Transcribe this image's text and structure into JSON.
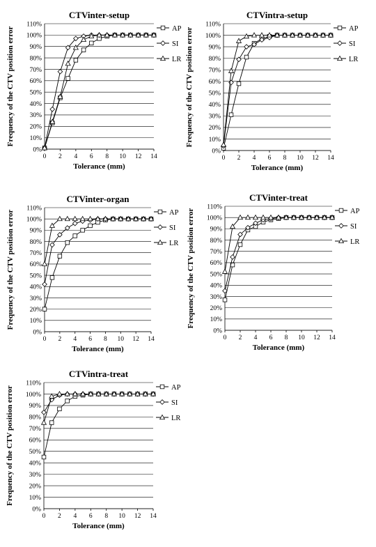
{
  "chart_data": [
    {
      "type": "line",
      "title": "CTVinter-setup",
      "xlabel": "Tolerance (mm)",
      "ylabel": "Frequency of the CTV position  error",
      "xlim": [
        0,
        14
      ],
      "ylim": [
        0,
        110
      ],
      "xticks": [
        "0",
        "2",
        "4",
        "6",
        "8",
        "10",
        "12",
        "14"
      ],
      "yticks": [
        "0%",
        "10%",
        "20%",
        "30%",
        "40%",
        "50%",
        "60%",
        "70%",
        "80%",
        "90%",
        "100%",
        "110%"
      ],
      "grid": "horizontal",
      "legend_position": "right",
      "x": [
        0,
        1,
        2,
        3,
        4,
        5,
        6,
        7,
        8,
        9,
        10,
        11,
        12,
        13,
        14
      ],
      "series": [
        {
          "name": "AP",
          "marker": "square",
          "values": [
            1,
            23,
            45,
            62,
            78,
            87,
            93,
            97,
            99,
            100,
            100,
            100,
            100,
            100,
            100
          ]
        },
        {
          "name": "SI",
          "marker": "diamond",
          "values": [
            1,
            35,
            68,
            89,
            97,
            99,
            100,
            100,
            100,
            100,
            100,
            100,
            100,
            100,
            100
          ]
        },
        {
          "name": "LR",
          "marker": "triangle",
          "values": [
            1,
            24,
            46,
            75,
            89,
            96,
            99,
            100,
            100,
            100,
            100,
            100,
            100,
            100,
            100
          ]
        }
      ]
    },
    {
      "type": "line",
      "title": "CTVintra-setup",
      "xlabel": "Tolerance (mm)",
      "ylabel": "Frequency of the CTV position  error",
      "xlim": [
        0,
        14
      ],
      "ylim": [
        0,
        110
      ],
      "xticks": [
        "0",
        "2",
        "4",
        "6",
        "8",
        "10",
        "12",
        "14"
      ],
      "yticks": [
        "0%",
        "10%",
        "20%",
        "30%",
        "40%",
        "50%",
        "60%",
        "70%",
        "80%",
        "90%",
        "100%",
        "110%"
      ],
      "grid": "horizontal",
      "legend_position": "right",
      "x": [
        0,
        1,
        2,
        3,
        4,
        5,
        6,
        7,
        8,
        9,
        10,
        11,
        12,
        13,
        14
      ],
      "series": [
        {
          "name": "AP",
          "marker": "square",
          "values": [
            2,
            31,
            58,
            81,
            93,
            97,
            99,
            100,
            100,
            100,
            100,
            100,
            100,
            100,
            100
          ]
        },
        {
          "name": "SI",
          "marker": "diamond",
          "values": [
            4,
            59,
            79,
            90,
            92,
            96,
            98,
            100,
            100,
            100,
            100,
            100,
            100,
            100,
            100
          ]
        },
        {
          "name": "LR",
          "marker": "triangle",
          "values": [
            5,
            69,
            95,
            99,
            100,
            100,
            100,
            100,
            100,
            100,
            100,
            100,
            100,
            100,
            100
          ]
        }
      ]
    },
    {
      "type": "line",
      "title": "CTVinter-organ",
      "xlabel": "Tolerance (mm)",
      "ylabel": "Frequency of the CTV position  error",
      "xlim": [
        0,
        14
      ],
      "ylim": [
        0,
        110
      ],
      "xticks": [
        "0",
        "2",
        "4",
        "6",
        "8",
        "10",
        "12",
        "14"
      ],
      "yticks": [
        "0%",
        "10%",
        "20%",
        "30%",
        "40%",
        "50%",
        "60%",
        "70%",
        "80%",
        "90%",
        "100%",
        "110%"
      ],
      "grid": "horizontal",
      "legend_position": "right",
      "x": [
        0,
        1,
        2,
        3,
        4,
        5,
        6,
        7,
        8,
        9,
        10,
        11,
        12,
        13,
        14
      ],
      "series": [
        {
          "name": "AP",
          "marker": "square",
          "values": [
            20,
            48,
            67,
            79,
            85,
            90,
            94,
            97,
            99,
            100,
            100,
            100,
            100,
            100,
            100
          ]
        },
        {
          "name": "SI",
          "marker": "diamond",
          "values": [
            42,
            77,
            86,
            92,
            96,
            98,
            99,
            100,
            100,
            100,
            100,
            100,
            100,
            100,
            100
          ]
        },
        {
          "name": "LR",
          "marker": "triangle",
          "values": [
            60,
            94,
            100,
            100,
            100,
            100,
            100,
            100,
            100,
            100,
            100,
            100,
            100,
            100,
            100
          ]
        }
      ]
    },
    {
      "type": "line",
      "title": "CTVinter-treat",
      "xlabel": "Tolerance (mm)",
      "ylabel": "Frequency of the CTV position  error",
      "xlim": [
        0,
        14
      ],
      "ylim": [
        0,
        110
      ],
      "xticks": [
        "0",
        "2",
        "4",
        "6",
        "8",
        "10",
        "12",
        "14"
      ],
      "yticks": [
        "0%",
        "10%",
        "20%",
        "30%",
        "40%",
        "50%",
        "60%",
        "70%",
        "80%",
        "90%",
        "100%",
        "110%"
      ],
      "grid": "horizontal",
      "legend_position": "right",
      "x": [
        0,
        1,
        2,
        3,
        4,
        5,
        6,
        7,
        8,
        9,
        10,
        11,
        12,
        13,
        14
      ],
      "series": [
        {
          "name": "AP",
          "marker": "square",
          "values": [
            27,
            58,
            76,
            89,
            92,
            96,
            98,
            99,
            100,
            100,
            100,
            100,
            100,
            100,
            100
          ]
        },
        {
          "name": "SI",
          "marker": "diamond",
          "values": [
            35,
            65,
            85,
            91,
            95,
            98,
            99,
            100,
            100,
            100,
            100,
            100,
            100,
            100,
            100
          ]
        },
        {
          "name": "LR",
          "marker": "triangle",
          "values": [
            52,
            92,
            100,
            100,
            100,
            100,
            100,
            100,
            100,
            100,
            100,
            100,
            100,
            100,
            100
          ]
        }
      ]
    },
    {
      "type": "line",
      "title": "CTVintra-treat",
      "xlabel": "Tolerance (mm)",
      "ylabel": "Frequency of the CTV position  error",
      "xlim": [
        0,
        14
      ],
      "ylim": [
        0,
        110
      ],
      "xticks": [
        "0",
        "2",
        "4",
        "6",
        "8",
        "10",
        "12",
        "14"
      ],
      "yticks": [
        "0%",
        "10%",
        "20%",
        "30%",
        "40%",
        "50%",
        "60%",
        "70%",
        "80%",
        "90%",
        "100%",
        "110%"
      ],
      "grid": "horizontal",
      "legend_position": "right",
      "x": [
        0,
        1,
        2,
        3,
        4,
        5,
        6,
        7,
        8,
        9,
        10,
        11,
        12,
        13,
        14
      ],
      "series": [
        {
          "name": "AP",
          "marker": "square",
          "values": [
            45,
            75,
            87,
            94,
            98,
            99,
            100,
            100,
            100,
            100,
            100,
            100,
            100,
            100,
            100
          ]
        },
        {
          "name": "SI",
          "marker": "diamond",
          "values": [
            84,
            95,
            99,
            100,
            100,
            100,
            100,
            100,
            100,
            100,
            100,
            100,
            100,
            100,
            100
          ]
        },
        {
          "name": "LR",
          "marker": "triangle",
          "values": [
            75,
            98,
            100,
            100,
            100,
            100,
            100,
            100,
            100,
            100,
            100,
            100,
            100,
            100,
            100
          ]
        }
      ]
    }
  ]
}
